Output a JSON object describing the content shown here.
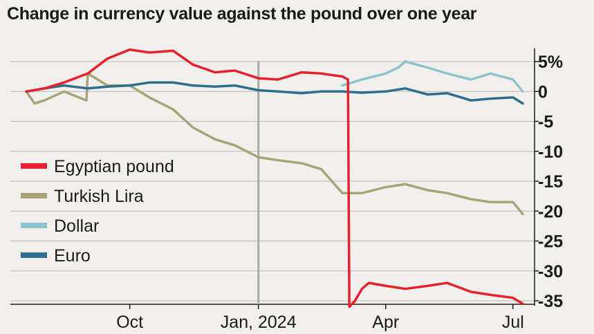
{
  "chart_data": {
    "type": "line",
    "title": "Change in currency value against the pound over one year",
    "y_ticks": [
      "5%",
      "0",
      "-5",
      "-10",
      "-15",
      "-20",
      "-25",
      "-30",
      "-35"
    ],
    "y_tick_values": [
      5,
      0,
      -5,
      -10,
      -15,
      -20,
      -25,
      -30,
      -35
    ],
    "ylim": [
      -36,
      7
    ],
    "x_ticks": [
      "Oct",
      "Jan, 2024",
      "Apr",
      "Jul"
    ],
    "x_tick_dates": [
      "2023-10-01",
      "2024-01-01",
      "2024-04-01",
      "2024-07-01"
    ],
    "xlim": [
      "2023-07-19",
      "2024-07-10"
    ],
    "vertical_marker_date": "2024-01-01",
    "grid": true,
    "legend_position": "left",
    "series": [
      {
        "name": "Egyptian pound",
        "color": "#e8202e",
        "points": [
          [
            "2023-07-19",
            0
          ],
          [
            "2023-08-01",
            0.5
          ],
          [
            "2023-08-15",
            1.5
          ],
          [
            "2023-09-01",
            3
          ],
          [
            "2023-09-15",
            5.5
          ],
          [
            "2023-10-01",
            7
          ],
          [
            "2023-10-15",
            6.5
          ],
          [
            "2023-11-01",
            6.8
          ],
          [
            "2023-11-15",
            4.5
          ],
          [
            "2023-12-01",
            3.2
          ],
          [
            "2023-12-15",
            3.5
          ],
          [
            "2024-01-01",
            2.2
          ],
          [
            "2024-01-15",
            2
          ],
          [
            "2024-02-01",
            3.2
          ],
          [
            "2024-02-15",
            3
          ],
          [
            "2024-03-01",
            2.5
          ],
          [
            "2024-03-05",
            2
          ],
          [
            "2024-03-06",
            -36
          ],
          [
            "2024-03-10",
            -35
          ],
          [
            "2024-03-15",
            -33
          ],
          [
            "2024-03-20",
            -32
          ],
          [
            "2024-04-01",
            -32.5
          ],
          [
            "2024-04-15",
            -33
          ],
          [
            "2024-05-01",
            -32.5
          ],
          [
            "2024-05-15",
            -32
          ],
          [
            "2024-06-01",
            -33.5
          ],
          [
            "2024-06-15",
            -34
          ],
          [
            "2024-07-01",
            -34.5
          ],
          [
            "2024-07-08",
            -35.5
          ]
        ]
      },
      {
        "name": "Turkish Lira",
        "color": "#a8a47a",
        "points": [
          [
            "2023-07-19",
            0
          ],
          [
            "2023-07-25",
            -2
          ],
          [
            "2023-08-01",
            -1.5
          ],
          [
            "2023-08-15",
            0
          ],
          [
            "2023-08-31",
            -1.5
          ],
          [
            "2023-09-01",
            3
          ],
          [
            "2023-09-15",
            1
          ],
          [
            "2023-10-01",
            1
          ],
          [
            "2023-10-15",
            -1
          ],
          [
            "2023-11-01",
            -3
          ],
          [
            "2023-11-15",
            -6
          ],
          [
            "2023-12-01",
            -8
          ],
          [
            "2023-12-15",
            -9
          ],
          [
            "2024-01-01",
            -11
          ],
          [
            "2024-01-15",
            -11.5
          ],
          [
            "2024-02-01",
            -12
          ],
          [
            "2024-02-15",
            -13
          ],
          [
            "2024-03-01",
            -17
          ],
          [
            "2024-03-15",
            -17
          ],
          [
            "2024-04-01",
            -16
          ],
          [
            "2024-04-15",
            -15.5
          ],
          [
            "2024-05-01",
            -16.5
          ],
          [
            "2024-05-15",
            -17
          ],
          [
            "2024-06-01",
            -18
          ],
          [
            "2024-06-15",
            -18.5
          ],
          [
            "2024-07-01",
            -18.5
          ],
          [
            "2024-07-08",
            -20.5
          ]
        ]
      },
      {
        "name": "Dollar",
        "color": "#8fc3cc",
        "points": [
          [
            "2024-03-01",
            1
          ],
          [
            "2024-03-15",
            2
          ],
          [
            "2024-04-01",
            3
          ],
          [
            "2024-04-10",
            4
          ],
          [
            "2024-04-15",
            5
          ],
          [
            "2024-05-01",
            4
          ],
          [
            "2024-05-15",
            3
          ],
          [
            "2024-06-01",
            2
          ],
          [
            "2024-06-15",
            3
          ],
          [
            "2024-07-01",
            2
          ],
          [
            "2024-07-08",
            0
          ]
        ]
      },
      {
        "name": "Euro",
        "color": "#2e6d8e",
        "points": [
          [
            "2023-07-19",
            0
          ],
          [
            "2023-08-01",
            0.5
          ],
          [
            "2023-08-15",
            1
          ],
          [
            "2023-09-01",
            0.5
          ],
          [
            "2023-09-15",
            0.8
          ],
          [
            "2023-10-01",
            1
          ],
          [
            "2023-10-15",
            1.5
          ],
          [
            "2023-11-01",
            1.5
          ],
          [
            "2023-11-15",
            1
          ],
          [
            "2023-12-01",
            0.8
          ],
          [
            "2023-12-15",
            1
          ],
          [
            "2024-01-01",
            0.2
          ],
          [
            "2024-01-15",
            0
          ],
          [
            "2024-02-01",
            -0.3
          ],
          [
            "2024-02-15",
            0
          ],
          [
            "2024-03-01",
            0
          ],
          [
            "2024-03-15",
            -0.2
          ],
          [
            "2024-04-01",
            0
          ],
          [
            "2024-04-15",
            0.5
          ],
          [
            "2024-05-01",
            -0.5
          ],
          [
            "2024-05-15",
            -0.3
          ],
          [
            "2024-06-01",
            -1.5
          ],
          [
            "2024-06-15",
            -1.2
          ],
          [
            "2024-07-01",
            -1
          ],
          [
            "2024-07-08",
            -2
          ]
        ]
      }
    ]
  },
  "colors": {
    "background": "#f2f0ec",
    "grid": "#b9b9b9",
    "marker_line": "#a9a9a9",
    "text": "#1a1a1a"
  }
}
